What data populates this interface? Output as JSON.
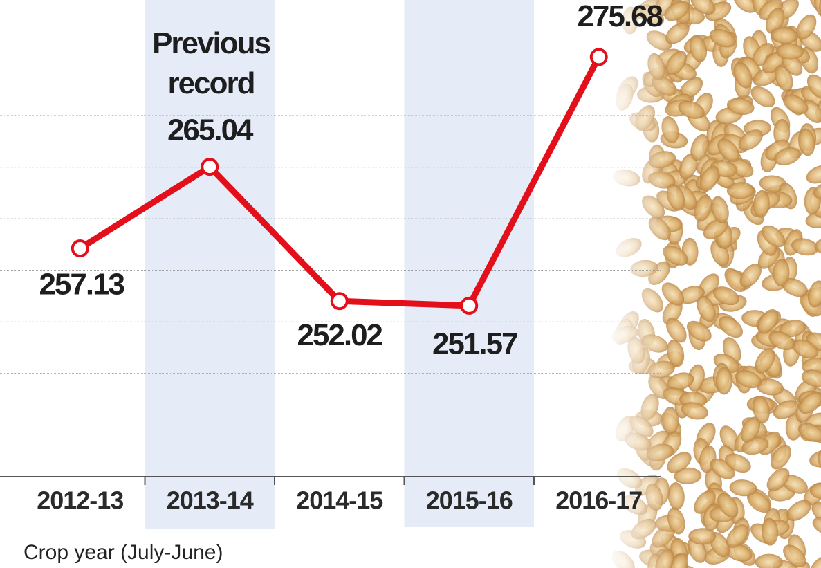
{
  "chart_data": {
    "type": "line",
    "categories": [
      "2012-13",
      "2013-14",
      "2014-15",
      "2015-16",
      "2016-17"
    ],
    "values": [
      257.13,
      265.04,
      252.02,
      251.57,
      275.68
    ],
    "color": "#e3101b",
    "ylim": [
      235,
      280
    ],
    "yticks": [
      240,
      245,
      250,
      255,
      260,
      265,
      270,
      275
    ],
    "grid": true,
    "annotation": "Previous record",
    "x_label": "Crop year (July-June)"
  }
}
